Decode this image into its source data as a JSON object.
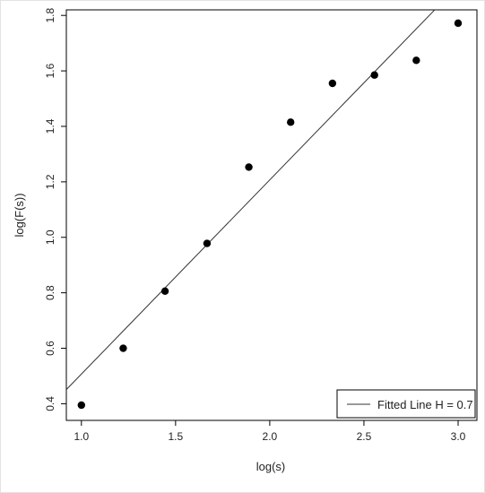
{
  "chart_data": {
    "type": "scatter",
    "title": "",
    "xlabel": "log(s)",
    "ylabel": "log(F(s))",
    "xlim": [
      0.92,
      3.1
    ],
    "ylim": [
      0.34,
      1.82
    ],
    "x_ticks": [
      1.0,
      1.5,
      2.0,
      2.5,
      3.0
    ],
    "x_tick_labels": [
      "1.0",
      "1.5",
      "2.0",
      "2.5",
      "3.0"
    ],
    "y_ticks": [
      0.4,
      0.6,
      0.8,
      1.0,
      1.2,
      1.4,
      1.6,
      1.8
    ],
    "y_tick_labels": [
      "0.4",
      "0.6",
      "0.8",
      "1.0",
      "1.2",
      "1.4",
      "1.6",
      "1.8"
    ],
    "grid": false,
    "series": [
      {
        "type": "scatter",
        "color": "#000000",
        "points": [
          {
            "x": 1.0,
            "y": 0.395
          },
          {
            "x": 1.222,
            "y": 0.6
          },
          {
            "x": 1.444,
            "y": 0.806
          },
          {
            "x": 1.667,
            "y": 0.978
          },
          {
            "x": 1.889,
            "y": 1.253
          },
          {
            "x": 2.111,
            "y": 1.415
          },
          {
            "x": 2.333,
            "y": 1.555
          },
          {
            "x": 2.556,
            "y": 1.585
          },
          {
            "x": 2.778,
            "y": 1.638
          },
          {
            "x": 3.0,
            "y": 1.772
          }
        ]
      },
      {
        "type": "line",
        "name": "Fitted Line H = 0.7",
        "color": "#333333",
        "slope": 0.7,
        "intercept": -0.193
      }
    ],
    "legend": {
      "position": "bottom-right",
      "entries": [
        "Fitted Line H = 0.7"
      ]
    }
  }
}
